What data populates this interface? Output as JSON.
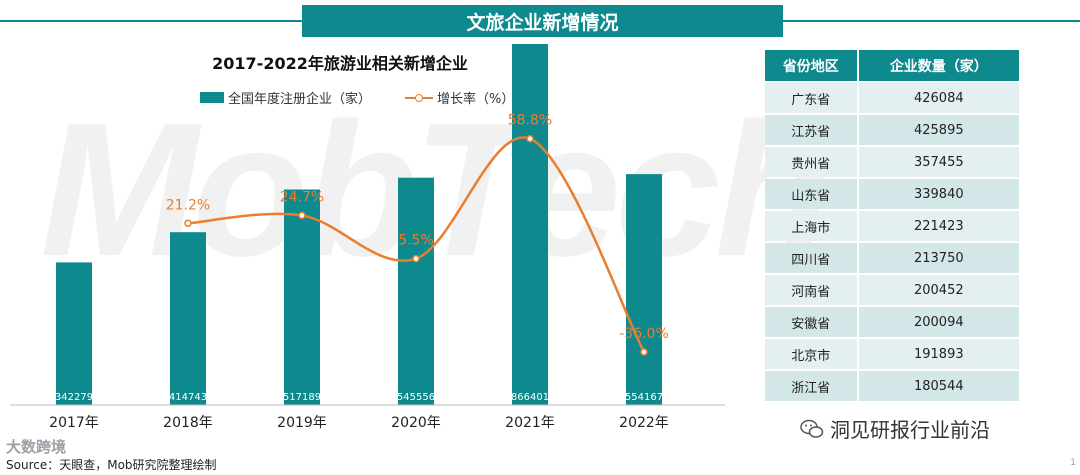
{
  "watermark": "MobTech",
  "header": {
    "banner": "文旅企业新增情况"
  },
  "chart_data": {
    "type": "bar",
    "title": "2017-2022年旅游业相关新增企业",
    "categories": [
      "2017年",
      "2018年",
      "2019年",
      "2020年",
      "2021年",
      "2022年"
    ],
    "series": [
      {
        "name": "全国年度注册企业（家）",
        "type": "bar",
        "values": [
          342279,
          414743,
          517189,
          545556,
          866401,
          554167
        ],
        "labels": [
          "342279",
          "414743",
          "517189",
          "545556",
          "866401",
          "554167"
        ]
      },
      {
        "name": "增长率（%）",
        "type": "line",
        "values": [
          null,
          21.2,
          24.7,
          5.5,
          58.8,
          -36.0
        ],
        "labels": [
          "",
          "21.2%",
          "24.7%",
          "5.5%",
          "58.8%",
          "-36.0%"
        ]
      }
    ],
    "xlabel": "",
    "ylabel": "",
    "ylim": [
      0,
      900000
    ],
    "y2lim": [
      -40,
      80
    ],
    "grid": false,
    "legend": "top"
  },
  "table": {
    "headers": [
      "省份地区",
      "企业数量（家）"
    ],
    "rows": [
      [
        "广东省",
        "426084"
      ],
      [
        "江苏省",
        "425895"
      ],
      [
        "贵州省",
        "357455"
      ],
      [
        "山东省",
        "339840"
      ],
      [
        "上海市",
        "221423"
      ],
      [
        "四川省",
        "213750"
      ],
      [
        "河南省",
        "200452"
      ],
      [
        "安徽省",
        "200094"
      ],
      [
        "北京市",
        "191893"
      ],
      [
        "浙江省",
        "180544"
      ]
    ]
  },
  "footer": {
    "source": "Source：天眼查，Mob研究院整理绘制",
    "wechat": "洞见研报行业前沿",
    "logo": "大数跨境",
    "page": "1"
  },
  "colors": {
    "teal": "#0e8a8e",
    "orange": "#ea7d2e"
  }
}
